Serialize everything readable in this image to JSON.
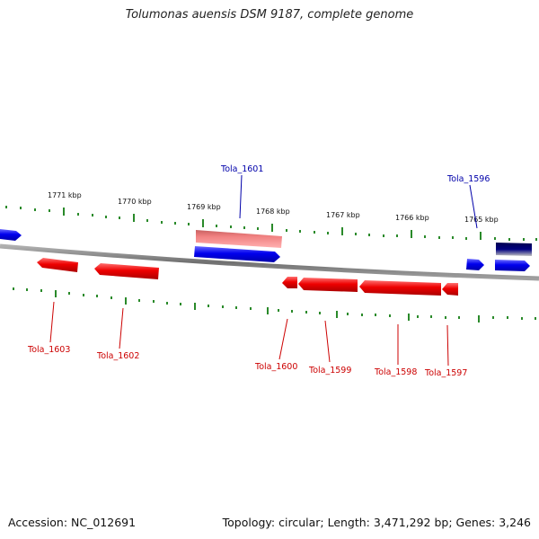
{
  "title": "Tolumonas auensis DSM 9187, complete genome",
  "footer": {
    "accession": "Accession: NC_012691",
    "summary": "Topology: circular; Length: 3,471,292 bp; Genes: 3,246"
  },
  "kbp_labels": [
    "1771 kbp",
    "1770 kbp",
    "1769 kbp",
    "1768 kbp",
    "1767 kbp",
    "1766 kbp",
    "1765 kbp"
  ],
  "gene_labels": {
    "tola_1601": "Tola_1601",
    "tola_1596": "Tola_1596",
    "tola_1603": "Tola_1603",
    "tola_1602": "Tola_1602",
    "tola_1600": "Tola_1600",
    "tola_1599": "Tola_1599",
    "tola_1598": "Tola_1598",
    "tola_1597": "Tola_1597"
  },
  "colors": {
    "forward_strand": "#0000ee",
    "reverse_strand": "#ee0000",
    "forward_label": "#0000aa",
    "reverse_label": "#cc0000",
    "backbone": "#808080",
    "tick": "#2a8a2a",
    "highlight_red": "#ee8888",
    "highlight_navy": "#000070"
  }
}
